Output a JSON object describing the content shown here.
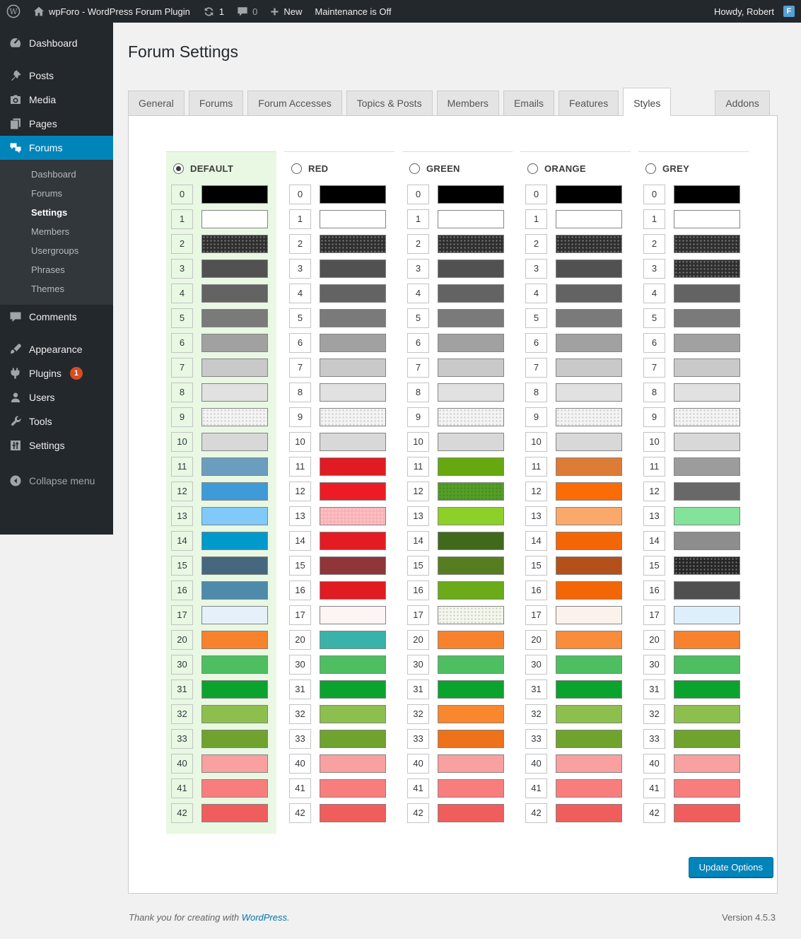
{
  "theme": {
    "adminbar_bg": "#23282d",
    "submenu_bg": "#32373c",
    "accent": "#0085ba",
    "link": "#0073aa",
    "badge": "#d54e21",
    "highlight": "#e8f8e3",
    "content_bg": "#f1f1f1"
  },
  "admin_bar": {
    "site_title": "wpForo - WordPress Forum Plugin",
    "updates_count": "1",
    "comments_count": "0",
    "new_label": "New",
    "maintenance_label": "Maintenance is Off",
    "howdy": "Howdy, Robert",
    "avatar_letter": "F"
  },
  "sidebar": {
    "items": [
      {
        "label": "Dashboard",
        "icon": "dashboard-icon"
      },
      {
        "label": "Posts",
        "icon": "pin-icon"
      },
      {
        "label": "Media",
        "icon": "media-icon"
      },
      {
        "label": "Pages",
        "icon": "pages-icon"
      },
      {
        "label": "Forums",
        "icon": "forums-icon",
        "active": true
      },
      {
        "label": "Comments",
        "icon": "comment-icon"
      },
      {
        "label": "Appearance",
        "icon": "brush-icon"
      },
      {
        "label": "Plugins",
        "icon": "plug-icon",
        "badge": "1"
      },
      {
        "label": "Users",
        "icon": "user-icon"
      },
      {
        "label": "Tools",
        "icon": "wrench-icon"
      },
      {
        "label": "Settings",
        "icon": "sliders-icon"
      },
      {
        "label": "Collapse menu",
        "icon": "collapse-icon"
      }
    ],
    "forums_submenu": [
      "Dashboard",
      "Forums",
      "Settings",
      "Members",
      "Usergroups",
      "Phrases",
      "Themes"
    ],
    "submenu_active": "Settings"
  },
  "page": {
    "title": "Forum Settings"
  },
  "tabs": [
    "General",
    "Forums",
    "Forum Accesses",
    "Topics & Posts",
    "Members",
    "Emails",
    "Features",
    "Styles",
    "Addons"
  ],
  "active_tab": "Styles",
  "palette": {
    "row_keys": [
      "0",
      "1",
      "2",
      "3",
      "4",
      "5",
      "6",
      "7",
      "8",
      "9",
      "10",
      "11",
      "12",
      "13",
      "14",
      "15",
      "16",
      "17",
      "20",
      "30",
      "31",
      "32",
      "33",
      "40",
      "41",
      "42"
    ],
    "columns": [
      {
        "name": "DEFAULT",
        "selected": true,
        "highlight": true,
        "colors": [
          "#000000",
          "#ffffff",
          "#2e2e2e",
          "#515151",
          "#636363",
          "#7a7a7a",
          "#a1a1a1",
          "#c9c9c9",
          "#e1e1e1",
          "#f4f4f4",
          "#d8d8d8",
          "#6b9dbe",
          "#3f9bd8",
          "#80c9f9",
          "#0099cc",
          "#45687f",
          "#4e8bab",
          "#e6f0fb",
          "#f8822b",
          "#4dbf61",
          "#0aa32d",
          "#8dbf4e",
          "#6fa32d",
          "#f9a0a0",
          "#f87e7e",
          "#ef5d5d"
        ],
        "textures": {
          "2": "light",
          "9": "dark"
        }
      },
      {
        "name": "RED",
        "selected": false,
        "highlight": false,
        "colors": [
          "#000000",
          "#ffffff",
          "#2e2e2e",
          "#515151",
          "#636363",
          "#7a7a7a",
          "#a1a1a1",
          "#c9c9c9",
          "#e1e1e1",
          "#f4f4f4",
          "#d8d8d8",
          "#e01b22",
          "#ed1c24",
          "#f9b3b6",
          "#e51b23",
          "#903538",
          "#e01b22",
          "#fdf4f4",
          "#39b3a9",
          "#4dbf61",
          "#0aa32d",
          "#8dbf4e",
          "#6fa32d",
          "#f9a0a0",
          "#f87e7e",
          "#ef5d5d"
        ],
        "textures": {
          "2": "light",
          "9": "dark",
          "13": "light"
        }
      },
      {
        "name": "GREEN",
        "selected": false,
        "highlight": false,
        "colors": [
          "#000000",
          "#ffffff",
          "#2e2e2e",
          "#515151",
          "#636363",
          "#7a7a7a",
          "#a1a1a1",
          "#c9c9c9",
          "#e1e1e1",
          "#f4f4f4",
          "#d8d8d8",
          "#66a80f",
          "#539f26",
          "#8ed02a",
          "#40691c",
          "#567d20",
          "#6baa18",
          "#f4f7ec",
          "#f8822b",
          "#4dbf61",
          "#0aa32d",
          "#f8872e",
          "#ee7219",
          "#f9a0a0",
          "#f87e7e",
          "#ef5d5d"
        ],
        "textures": {
          "2": "light",
          "9": "dark",
          "12": "dark",
          "17": "dark"
        }
      },
      {
        "name": "ORANGE",
        "selected": false,
        "highlight": false,
        "colors": [
          "#000000",
          "#ffffff",
          "#2e2e2e",
          "#515151",
          "#636363",
          "#7a7a7a",
          "#a1a1a1",
          "#c9c9c9",
          "#e1e1e1",
          "#f4f4f4",
          "#d8d8d8",
          "#dc7c36",
          "#fb6b06",
          "#faa96a",
          "#f36605",
          "#b4511b",
          "#f36605",
          "#fcf2ec",
          "#fa8d3c",
          "#4dbf61",
          "#0aa32d",
          "#8dbf4e",
          "#6fa32d",
          "#f9a0a0",
          "#f87e7e",
          "#ef5d5d"
        ],
        "textures": {
          "2": "light",
          "9": "dark"
        }
      },
      {
        "name": "GREY",
        "selected": false,
        "highlight": false,
        "colors": [
          "#000000",
          "#ffffff",
          "#2e2e2e",
          "#2e2e2e",
          "#636363",
          "#7a7a7a",
          "#a1a1a1",
          "#c9c9c9",
          "#e1e1e1",
          "#f4f4f4",
          "#d8d8d8",
          "#9c9c9c",
          "#686868",
          "#84e39b",
          "#8d8d8d",
          "#262626",
          "#505050",
          "#ddeffb",
          "#f8822b",
          "#4dbf61",
          "#0aa32d",
          "#8dbf4e",
          "#6fa32d",
          "#f9a0a0",
          "#f87e7e",
          "#ef5d5d"
        ],
        "textures": {
          "2": "light",
          "3": "light",
          "9": "dark",
          "15": "light"
        }
      }
    ]
  },
  "actions": {
    "update_label": "Update Options"
  },
  "footer": {
    "thanks_prefix": "Thank you for creating with",
    "link_text": "WordPress",
    "suffix": ".",
    "version": "Version 4.5.3"
  }
}
